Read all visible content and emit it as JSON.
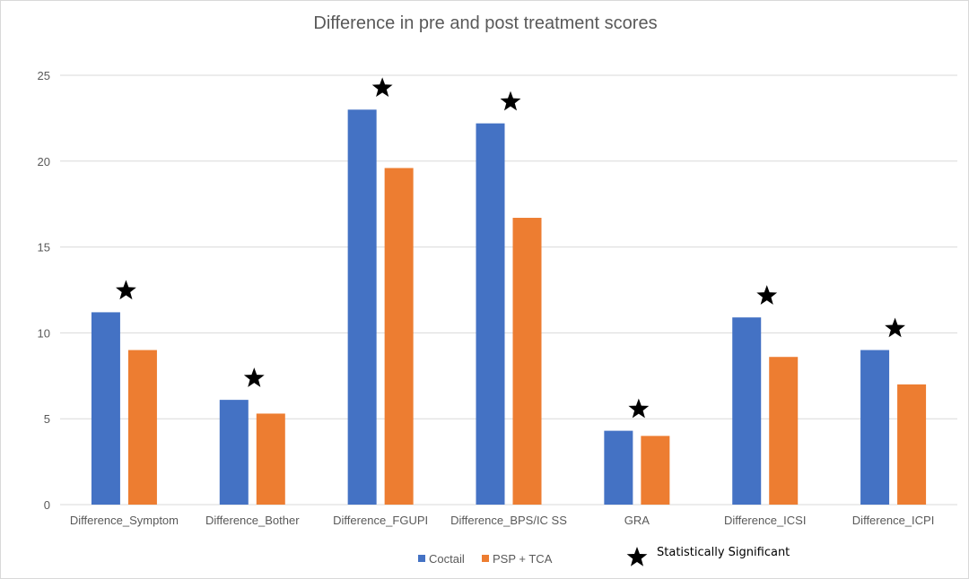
{
  "chart_data": {
    "type": "bar",
    "title": "Difference in pre and post treatment scores",
    "xlabel": "",
    "ylabel": "",
    "categories": [
      "Difference_Symptom",
      "Difference_Bother",
      "Difference_FGUPI",
      "Difference_BPS/IC SS",
      "GRA",
      "Difference_ICSI",
      "Difference_ICPI"
    ],
    "series": [
      {
        "name": "Coctail",
        "color": "#4472c4",
        "values": [
          11.2,
          6.1,
          23.0,
          22.2,
          4.3,
          10.9,
          9.0
        ]
      },
      {
        "name": "PSP + TCA",
        "color": "#ed7d31",
        "values": [
          9.0,
          5.3,
          19.6,
          16.7,
          4.0,
          8.6,
          7.0
        ]
      }
    ],
    "ylim": [
      0,
      25
    ],
    "yticks": [
      0,
      5,
      10,
      15,
      20,
      25
    ],
    "grid": true,
    "legend_position": "bottom",
    "significant": [
      true,
      true,
      true,
      true,
      true,
      true,
      true
    ],
    "significance_marker": "★",
    "significance_label": "Statistically Significant"
  }
}
